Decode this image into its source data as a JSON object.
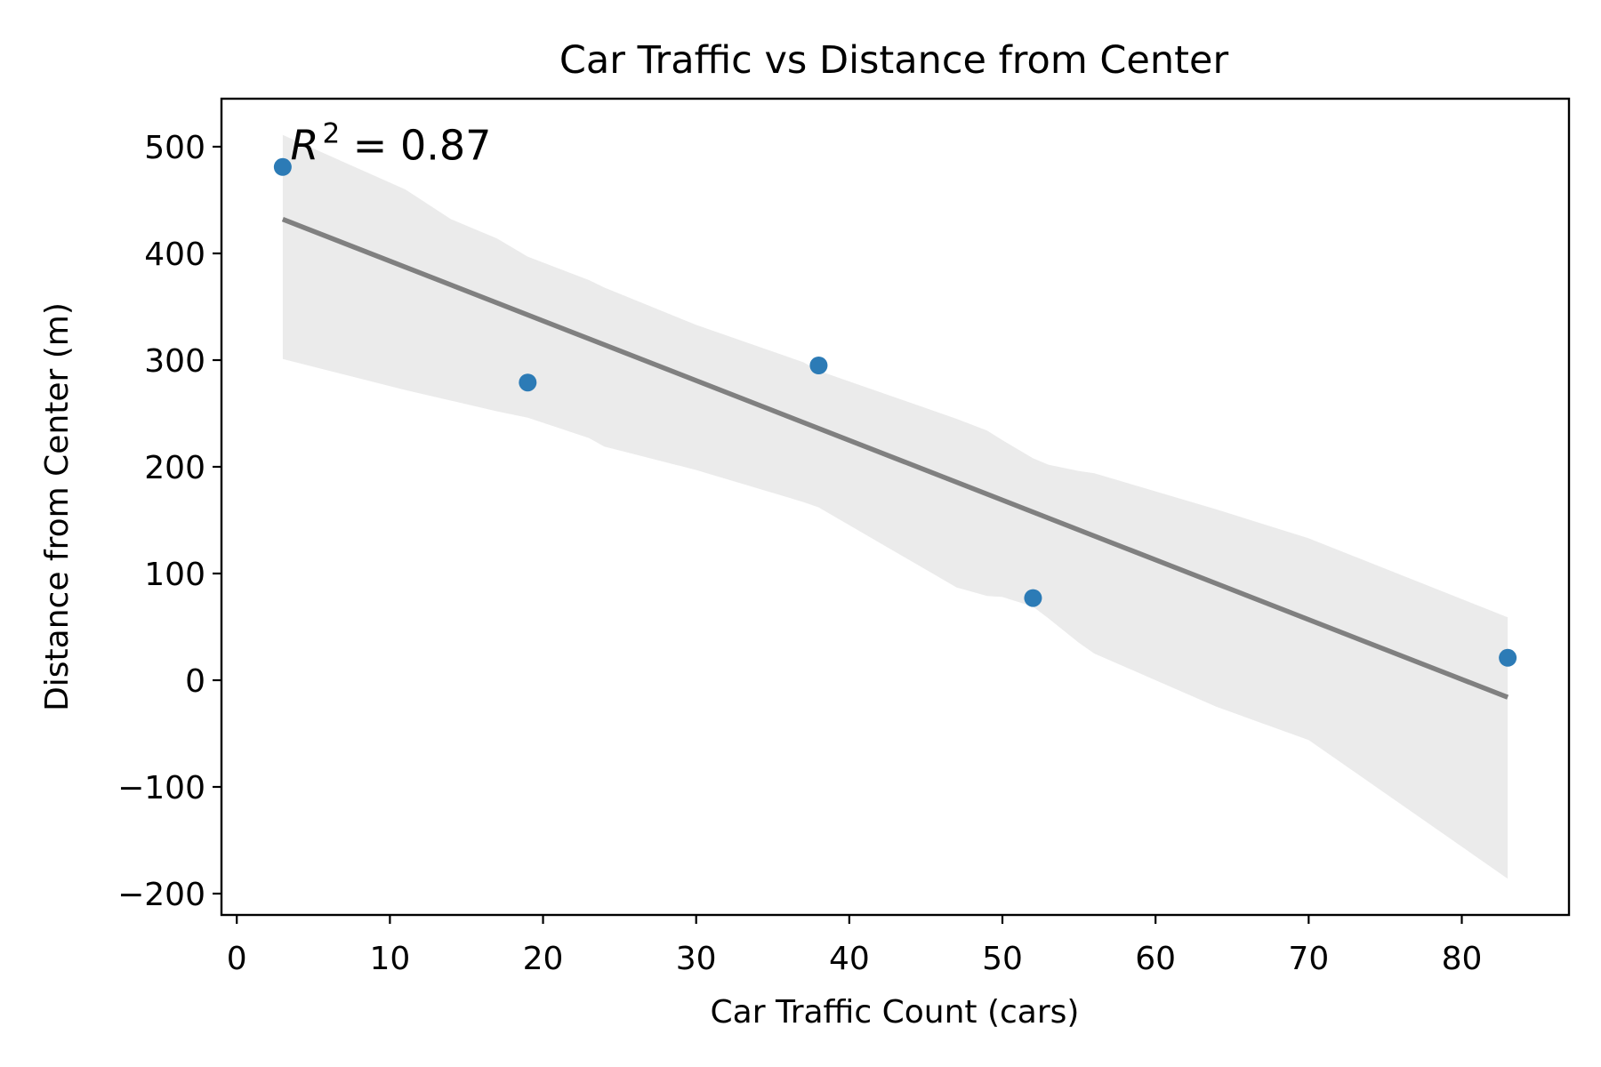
{
  "chart_data": {
    "type": "scatter",
    "title": "Car Traffic vs Distance from Center",
    "xlabel": "Car Traffic Count (cars)",
    "ylabel": "Distance from Center (m)",
    "xlim": [
      -1,
      87
    ],
    "ylim": [
      -220,
      545
    ],
    "xticks": [
      0,
      10,
      20,
      30,
      40,
      50,
      60,
      70,
      80
    ],
    "yticks": [
      -200,
      -100,
      0,
      100,
      200,
      300,
      400,
      500
    ],
    "xtick_labels": [
      "0",
      "10",
      "20",
      "30",
      "40",
      "50",
      "60",
      "70",
      "80"
    ],
    "ytick_labels": [
      "−200",
      "−100",
      "0",
      "100",
      "200",
      "300",
      "400",
      "500"
    ],
    "grid": false,
    "series": [
      {
        "x": [
          3,
          19,
          38,
          52,
          83
        ],
        "y": [
          481,
          279,
          295,
          77,
          21
        ],
        "color": "#2c7bb6"
      }
    ],
    "regression": {
      "x": [
        3,
        83
      ],
      "y": [
        432,
        -16
      ],
      "color": "#808080",
      "ci_color": "#ebebeb",
      "ci_x": [
        3,
        11,
        14,
        17,
        19,
        23,
        24,
        30,
        37,
        38,
        47,
        49,
        50,
        52,
        53,
        55,
        56,
        64,
        70,
        83
      ],
      "ci_upper": [
        511,
        460,
        432,
        414,
        397,
        375,
        368,
        333,
        298,
        290,
        245,
        234,
        225,
        208,
        202,
        196,
        194,
        160,
        133,
        59
      ],
      "ci_lower": [
        301,
        272,
        262,
        252,
        246,
        227,
        219,
        197,
        167,
        162,
        87,
        79,
        78,
        69,
        58,
        35,
        25,
        -25,
        -56,
        -186
      ]
    },
    "annotation": {
      "base": "R",
      "superscript": "2",
      "text": " = 0.87",
      "x": 3.5,
      "y": 488
    }
  }
}
